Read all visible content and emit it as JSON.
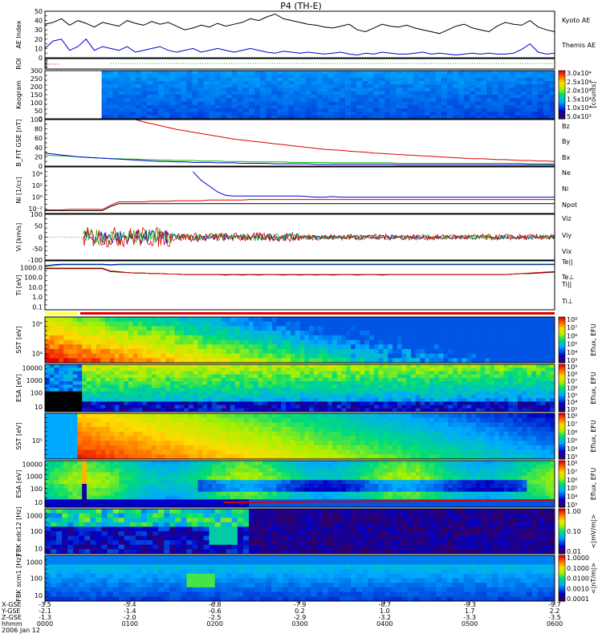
{
  "title": "P4 (TH-E)",
  "colors": {
    "red": "#e00000",
    "green": "#00c000",
    "blue": "#0000d0",
    "black": "#000000"
  },
  "chart_data": [
    {
      "id": "ae",
      "type": "line",
      "ylabel": "AE Index",
      "ytick_labels": [
        "0",
        "10",
        "20",
        "30",
        "40",
        "50"
      ],
      "ylim": [
        0,
        50
      ],
      "series": [
        {
          "name": "Kyoto AE",
          "color": "#000000",
          "values": [
            36,
            38,
            42,
            35,
            40,
            37,
            33,
            38,
            36,
            34,
            40,
            37,
            35,
            39,
            36,
            38,
            34,
            30,
            32,
            35,
            33,
            37,
            34,
            36,
            38,
            42,
            40,
            44,
            47,
            42,
            40,
            38,
            36,
            35,
            33,
            32,
            34,
            36,
            30,
            28,
            32,
            36,
            34,
            33,
            35,
            32,
            30,
            28,
            26,
            30,
            34,
            36,
            32,
            30,
            28,
            34,
            38,
            36,
            35,
            40,
            33,
            30,
            28
          ]
        },
        {
          "name": "Themis AE",
          "color": "#0000d0",
          "values": [
            10,
            18,
            20,
            8,
            12,
            20,
            8,
            12,
            10,
            8,
            12,
            6,
            8,
            10,
            12,
            8,
            6,
            8,
            10,
            6,
            8,
            10,
            8,
            6,
            8,
            10,
            8,
            6,
            5,
            7,
            6,
            5,
            6,
            5,
            4,
            5,
            6,
            4,
            3,
            5,
            4,
            6,
            5,
            4,
            4,
            5,
            6,
            4,
            5,
            4,
            3,
            4,
            5,
            4,
            5,
            4,
            4,
            5,
            9,
            15,
            6,
            4,
            5
          ]
        }
      ]
    },
    {
      "id": "roi",
      "type": "line",
      "ylabel": "ROI"
    },
    {
      "id": "keogram",
      "type": "heatmap",
      "ylabel": "Keogram",
      "ytick_labels": [
        "0",
        "50",
        "100",
        "150",
        "200",
        "250",
        "300"
      ],
      "colorbar": {
        "ticks": [
          "3.0x10⁴",
          "2.5x10⁴",
          "2.0x10⁴",
          "1.5x10⁴",
          "1.0x10⁴",
          "5.0x10³"
        ],
        "label": "[counts]"
      }
    },
    {
      "id": "bfield",
      "type": "line",
      "ylabel": "B_FIT GSE [nT]",
      "ytick_labels": [
        "0",
        "20",
        "40",
        "60",
        "80",
        "100"
      ],
      "ylim": [
        0,
        100
      ],
      "series": [
        {
          "name": "Bz",
          "color": "#e00000",
          "values": [
            null,
            null,
            null,
            null,
            null,
            null,
            null,
            null,
            null,
            null,
            null,
            100,
            95,
            91,
            87,
            83,
            79,
            76,
            73,
            70,
            67,
            64,
            61,
            58,
            56,
            54,
            52,
            50,
            48,
            46,
            44,
            42,
            40,
            38,
            36,
            35,
            34,
            32,
            31,
            30,
            28,
            27,
            26,
            25,
            24,
            23,
            22,
            21,
            20,
            19,
            18,
            17,
            16,
            16,
            15,
            14,
            14,
            13,
            12,
            12,
            11,
            11,
            10
          ]
        },
        {
          "name": "By",
          "color": "#00c000",
          "values": [
            24,
            23,
            22,
            21,
            20,
            19,
            18,
            17,
            16,
            16,
            15,
            15,
            14,
            14,
            13,
            13,
            12,
            12,
            12,
            11,
            11,
            11,
            10,
            10,
            10,
            9,
            9,
            9,
            9,
            9,
            8,
            8,
            8,
            8,
            8,
            7,
            7,
            7,
            7,
            7,
            7,
            7,
            7,
            6,
            6,
            6,
            6,
            6,
            6,
            6,
            6,
            6,
            6,
            6,
            6,
            6,
            6,
            6,
            6,
            5,
            5,
            5,
            5
          ]
        },
        {
          "name": "Bx",
          "color": "#0000d0",
          "values": [
            28,
            26,
            24,
            22,
            20,
            19,
            18,
            17,
            16,
            15,
            14,
            13,
            12,
            11,
            10,
            10,
            9,
            9,
            8,
            8,
            8,
            7,
            7,
            7,
            6,
            6,
            6,
            6,
            5,
            5,
            5,
            5,
            5,
            4,
            4,
            4,
            4,
            4,
            4,
            4,
            4,
            4,
            4,
            3,
            3,
            3,
            3,
            3,
            3,
            3,
            3,
            3,
            3,
            3,
            3,
            3,
            3,
            3,
            3,
            3,
            3,
            3,
            3
          ]
        }
      ]
    },
    {
      "id": "density",
      "type": "line",
      "ylabel": "Ni [1/cc]",
      "ytick_labels": [
        "10⁻²",
        "10⁰",
        "10²",
        "10⁴"
      ],
      "series": [
        {
          "name": "Ne",
          "color": "#e00000",
          "values": [
            -1.6,
            -1.6,
            -1.6,
            -1.5,
            -1.5,
            -1.5,
            -1.5,
            -1.5,
            -0.8,
            -0.2,
            -0.2,
            -0.2,
            -0.2,
            -0.1,
            -0.1,
            -0.1,
            0,
            0,
            0,
            0,
            0.1,
            0.1,
            0.1,
            0.1,
            0.1,
            0.2,
            0.2,
            0.2,
            0.2,
            0.2,
            0.2,
            0.2,
            0.2,
            0.2,
            0.2,
            0.2,
            0.2,
            0.2,
            0.2,
            0.2,
            0.2,
            0.2,
            0.2,
            0.2,
            0.2,
            0.2,
            0.2,
            0.2,
            0.2,
            0.2,
            0.2,
            0.2,
            0.2,
            0.2,
            0.2,
            0.2,
            0.2,
            0.2,
            0.2,
            0.2,
            0.2,
            0.2,
            0.2
          ]
        },
        {
          "name": "Ni",
          "color": "#000000",
          "values": [
            -1.7,
            -1.7,
            -1.7,
            -1.7,
            -1.7,
            -1.7,
            -1.7,
            -1.7,
            -1.0,
            -0.5,
            -0.5,
            -0.5,
            -0.5,
            -0.5,
            -0.5,
            -0.5,
            -0.5,
            -0.5,
            -0.5,
            -0.5,
            -0.5,
            -0.5,
            -0.5,
            -0.5,
            -0.5,
            -0.5,
            -0.5,
            -0.5,
            -0.5,
            -0.5,
            -0.5,
            -0.5,
            -0.5,
            -0.5,
            -0.5,
            -0.5,
            -0.5,
            -0.5,
            -0.5,
            -0.5,
            -0.5,
            -0.5,
            -0.5,
            -0.5,
            -0.5,
            -0.5,
            -0.5,
            -0.5,
            -0.5,
            -0.5,
            -0.5,
            -0.5,
            -0.5,
            -0.5,
            -0.5,
            -0.5,
            -0.5,
            -0.5,
            -0.5,
            -0.5,
            -0.5,
            -0.5,
            -0.5
          ]
        },
        {
          "name": "Npot",
          "color": "#0000d0",
          "values": [
            null,
            null,
            null,
            null,
            null,
            null,
            null,
            null,
            null,
            null,
            null,
            null,
            null,
            null,
            null,
            null,
            null,
            null,
            5,
            3.5,
            2.5,
            1.5,
            0.9,
            0.8,
            0.8,
            0.8,
            0.8,
            0.8,
            0.8,
            0.8,
            0.8,
            0.8,
            0.7,
            0.6,
            0.6,
            0.7,
            0.6,
            0.6,
            0.6,
            0.6,
            0.6,
            0.6,
            0.6,
            0.6,
            0.6,
            0.6,
            0.6,
            0.6,
            0.6,
            0.6,
            0.6,
            0.6,
            0.6,
            0.6,
            0.6,
            0.6,
            0.6,
            0.6,
            0.6,
            0.6,
            0.6,
            0.6,
            0.6
          ]
        }
      ]
    },
    {
      "id": "velocity",
      "type": "line",
      "ylabel": "Vi [km/s]",
      "ytick_labels": [
        "-100",
        "-50",
        "0",
        "50",
        "100"
      ],
      "ylim": [
        -100,
        100
      ],
      "series": [
        {
          "name": "Vix",
          "color": "#0000d0"
        },
        {
          "name": "Viy",
          "color": "#00c000"
        },
        {
          "name": "Viz",
          "color": "#e00000"
        }
      ]
    },
    {
      "id": "temperature",
      "type": "line",
      "ylabel": "Ti [eV]",
      "ytick_labels": [
        "0.1",
        "1.0",
        "10.0",
        "100.0",
        "1000.0"
      ],
      "series": [
        {
          "name": "Te||",
          "color": "#000000",
          "values": [
            2.9,
            2.9,
            2.9,
            2.9,
            2.9,
            2.9,
            2.9,
            2.9,
            2.6,
            2.55,
            2.5,
            2.45,
            2.45,
            2.4,
            2.4,
            2.35,
            2.35,
            2.3,
            2.3,
            2.3,
            2.3,
            2.3,
            2.25,
            2.3,
            2.25,
            2.3,
            2.25,
            2.3,
            2.3,
            2.25,
            2.3,
            2.25,
            2.3,
            2.25,
            2.3,
            2.25,
            2.3,
            2.3,
            2.25,
            2.3,
            2.3,
            2.25,
            2.3,
            2.3,
            2.3,
            2.3,
            2.3,
            2.3,
            2.3,
            2.3,
            2.3,
            2.3,
            2.3,
            2.3,
            2.3,
            2.3,
            2.3,
            2.35,
            2.4,
            2.4,
            2.45,
            2.5,
            2.55
          ]
        },
        {
          "name": "Te⊥",
          "color": "#e00000",
          "values": [
            2.95,
            2.95,
            2.95,
            2.95,
            2.95,
            2.95,
            2.95,
            2.95,
            2.65,
            2.6,
            2.5,
            2.45,
            2.45,
            2.4,
            2.4,
            2.35,
            2.35,
            2.3,
            2.3,
            2.3,
            2.3,
            2.3,
            2.3,
            2.3,
            2.3,
            2.3,
            2.3,
            2.3,
            2.3,
            2.3,
            2.3,
            2.3,
            2.3,
            2.3,
            2.3,
            2.3,
            2.3,
            2.3,
            2.3,
            2.3,
            2.3,
            2.3,
            2.3,
            2.3,
            2.3,
            2.3,
            2.3,
            2.3,
            2.3,
            2.3,
            2.3,
            2.3,
            2.3,
            2.3,
            2.3,
            2.3,
            2.3,
            2.35,
            2.4,
            2.45,
            2.5,
            2.55,
            2.6
          ]
        },
        {
          "name": "Ti||",
          "color": "#00c000",
          "values": [
            3.1,
            3.2,
            3.3,
            3.3,
            3.3,
            3.3,
            3.3,
            3.3,
            3.25,
            3.3,
            3.3,
            3.3,
            3.3,
            3.3,
            3.3,
            3.3,
            3.3,
            3.3,
            3.3,
            3.3,
            3.3,
            3.3,
            3.3,
            3.3,
            3.3,
            3.3,
            3.3,
            3.3,
            3.3,
            3.3,
            3.3,
            3.3,
            3.3,
            3.3,
            3.3,
            3.3,
            3.3,
            3.3,
            3.3,
            3.3,
            3.3,
            3.3,
            3.3,
            3.3,
            3.3,
            3.3,
            3.3,
            3.3,
            3.3,
            3.3,
            3.3,
            3.3,
            3.3,
            3.3,
            3.3,
            3.3,
            3.3,
            3.3,
            3.3,
            3.3,
            3.3,
            3.3,
            3.3
          ]
        },
        {
          "name": "Ti⊥",
          "color": "#0000d0",
          "values": [
            3.2,
            3.3,
            3.35,
            3.35,
            3.35,
            3.35,
            3.35,
            3.35,
            3.3,
            3.35,
            3.35,
            3.35,
            3.35,
            3.35,
            3.35,
            3.35,
            3.35,
            3.35,
            3.35,
            3.35,
            3.35,
            3.35,
            3.35,
            3.35,
            3.35,
            3.35,
            3.35,
            3.35,
            3.35,
            3.35,
            3.35,
            3.35,
            3.35,
            3.35,
            3.35,
            3.35,
            3.35,
            3.35,
            3.35,
            3.35,
            3.35,
            3.35,
            3.35,
            3.35,
            3.35,
            3.35,
            3.35,
            3.35,
            3.35,
            3.35,
            3.35,
            3.35,
            3.35,
            3.35,
            3.35,
            3.35,
            3.35,
            3.35,
            3.35,
            3.35,
            3.35,
            3.35,
            3.35
          ]
        }
      ]
    },
    {
      "id": "sst_e",
      "type": "heatmap",
      "ylabel": "SST [eV]",
      "ytick_labels": [
        "10⁵",
        "10⁴"
      ],
      "colorbar": {
        "ticks": [
          "10⁸",
          "10⁷",
          "10⁶",
          "10⁵",
          "10⁴",
          "10³"
        ],
        "label": "Eflux, EFU"
      }
    },
    {
      "id": "esa_e",
      "type": "heatmap",
      "ylabel": "ESA [eV]",
      "ytick_labels": [
        "10000",
        "1000",
        "100",
        "10"
      ],
      "colorbar": {
        "ticks": [
          "10⁹",
          "10⁸",
          "10⁷",
          "10⁶",
          "10⁵",
          "10⁴",
          "10³"
        ],
        "label": "Eflux, EFU"
      }
    },
    {
      "id": "sst_i",
      "type": "heatmap",
      "ylabel": "SST [eV]",
      "ytick_labels": [
        "10⁵"
      ],
      "colorbar": {
        "ticks": [
          "10⁸",
          "10⁷",
          "10⁶",
          "10⁵",
          "10⁴",
          "10³"
        ],
        "label": "Eflux, EFU"
      }
    },
    {
      "id": "esa_i",
      "type": "heatmap",
      "ylabel": "ESA [eV]",
      "ytick_labels": [
        "10000",
        "1000",
        "100",
        "10"
      ],
      "colorbar": {
        "ticks": [
          "10⁸",
          "10⁷",
          "10⁶",
          "10⁵",
          "10⁴",
          "10³"
        ],
        "label": "Eflux, EFU"
      }
    },
    {
      "id": "fbk_e",
      "type": "heatmap",
      "ylabel": "FBK edc12 [Hz]",
      "ytick_labels": [
        "1000",
        "100",
        "10"
      ],
      "colorbar": {
        "ticks": [
          "1.00",
          "0.10",
          "0.01"
        ],
        "label": "<|mV/m|>"
      }
    },
    {
      "id": "fbk_b",
      "type": "heatmap",
      "ylabel": "FBK scm1 [Hz]",
      "ytick_labels": [
        "1000",
        "100",
        "10"
      ],
      "colorbar": {
        "ticks": [
          "1.0000",
          "0.1000",
          "0.0100",
          "0.0010",
          "0.0001"
        ],
        "label": "<|nT/m|>"
      }
    }
  ],
  "xaxis": {
    "row_labels": [
      "X-GSE",
      "Y-GSE",
      "Z-GSE",
      "hhmm",
      "2006 Jan 12"
    ],
    "columns": [
      [
        "-3.5",
        "-2.1",
        "-1.3",
        "0000"
      ],
      [
        "-5.4",
        "-1.4",
        "-2.0",
        "0100"
      ],
      [
        "-6.8",
        "-0.6",
        "-2.5",
        "0200"
      ],
      [
        "-7.9",
        "0.2",
        "-2.9",
        "0300"
      ],
      [
        "-8.7",
        "1.0",
        "-3.2",
        "0400"
      ],
      [
        "-9.3",
        "1.7",
        "-3.3",
        "0500"
      ],
      [
        "-9.7",
        "2.2",
        "-3.5",
        "0600"
      ]
    ]
  }
}
